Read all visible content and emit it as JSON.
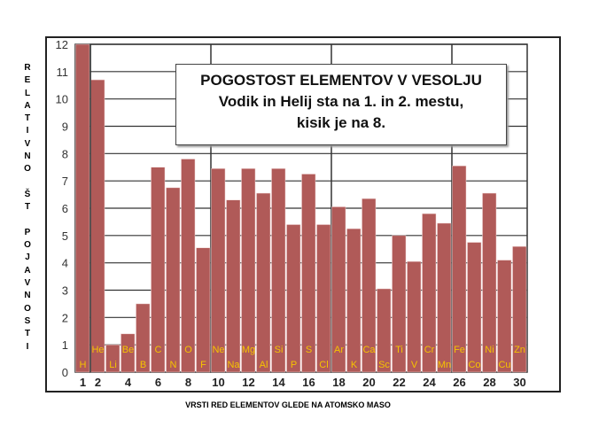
{
  "chart_data": {
    "type": "bar",
    "title": "POGOSTOST ELEMENTOV V VESOLJU",
    "subtitle_line1": "Vodik in Helij sta na 1. in 2. mestu,",
    "subtitle_line2": "kisik je na 8.",
    "ylabel": "RELATIVNO ŠT POJAVNOSTI",
    "xlabel": "VRSTI RED ELEMENTOV GLEDE NA ATOMSKO MASO",
    "ylim": [
      0,
      12
    ],
    "yticks": [
      "0",
      "1",
      "2",
      "3",
      "4",
      "5",
      "6",
      "7",
      "8",
      "9",
      "10",
      "11",
      "12"
    ],
    "xticks": [
      "1",
      "2",
      "4",
      "6",
      "8",
      "10",
      "12",
      "14",
      "16",
      "18",
      "20",
      "22",
      "24",
      "26",
      "28",
      "30"
    ],
    "categories": [
      "H",
      "He",
      "Li",
      "Be",
      "B",
      "C",
      "N",
      "O",
      "F",
      "Ne",
      "Na",
      "Mg",
      "Al",
      "Si",
      "P",
      "S",
      "Cl",
      "Ar",
      "K",
      "Ca",
      "Sc",
      "Ti",
      "V",
      "Cr",
      "Mn",
      "Fe",
      "Co",
      "Ni",
      "Cu",
      "Zn"
    ],
    "values": [
      12,
      10.7,
      1.0,
      1.4,
      2.5,
      7.5,
      6.75,
      7.8,
      4.55,
      7.45,
      6.3,
      7.45,
      6.55,
      7.45,
      5.4,
      7.25,
      5.4,
      6.05,
      5.25,
      6.35,
      3.05,
      5.0,
      4.05,
      5.8,
      5.45,
      7.55,
      4.75,
      6.55,
      4.1,
      4.6
    ],
    "grid": true,
    "bar_color": "#b05a58",
    "label_color": "#f5c400"
  }
}
